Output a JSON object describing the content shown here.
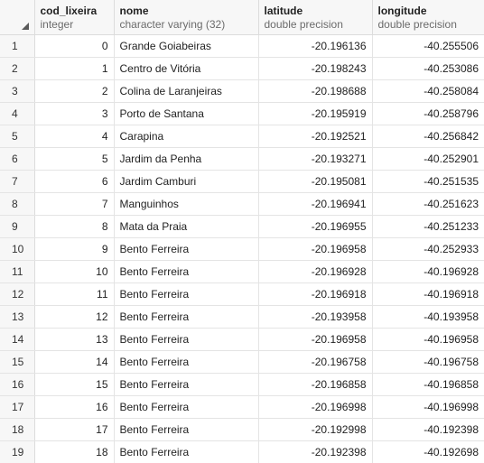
{
  "columns": [
    {
      "name": "cod_lixeira",
      "type": "integer"
    },
    {
      "name": "nome",
      "type": "character varying (32)"
    },
    {
      "name": "latitude",
      "type": "double precision"
    },
    {
      "name": "longitude",
      "type": "double precision"
    }
  ],
  "rows": [
    {
      "num": "1",
      "cod": "0",
      "nome": "Grande Goiabeiras",
      "lat": "-20.196136",
      "lon": "-40.255506"
    },
    {
      "num": "2",
      "cod": "1",
      "nome": "Centro de Vitória",
      "lat": "-20.198243",
      "lon": "-40.253086"
    },
    {
      "num": "3",
      "cod": "2",
      "nome": "Colina de Laranjeiras",
      "lat": "-20.198688",
      "lon": "-40.258084"
    },
    {
      "num": "4",
      "cod": "3",
      "nome": "Porto de Santana",
      "lat": "-20.195919",
      "lon": "-40.258796"
    },
    {
      "num": "5",
      "cod": "4",
      "nome": "Carapina",
      "lat": "-20.192521",
      "lon": "-40.256842"
    },
    {
      "num": "6",
      "cod": "5",
      "nome": "Jardim da Penha",
      "lat": "-20.193271",
      "lon": "-40.252901"
    },
    {
      "num": "7",
      "cod": "6",
      "nome": "Jardim Camburi",
      "lat": "-20.195081",
      "lon": "-40.251535"
    },
    {
      "num": "8",
      "cod": "7",
      "nome": "Manguinhos",
      "lat": "-20.196941",
      "lon": "-40.251623"
    },
    {
      "num": "9",
      "cod": "8",
      "nome": "Mata da Praia",
      "lat": "-20.196955",
      "lon": "-40.251233"
    },
    {
      "num": "10",
      "cod": "9",
      "nome": "Bento Ferreira",
      "lat": "-20.196958",
      "lon": "-40.252933"
    },
    {
      "num": "11",
      "cod": "10",
      "nome": "Bento Ferreira",
      "lat": "-20.196928",
      "lon": "-40.196928"
    },
    {
      "num": "12",
      "cod": "11",
      "nome": "Bento Ferreira",
      "lat": "-20.196918",
      "lon": "-40.196918"
    },
    {
      "num": "13",
      "cod": "12",
      "nome": "Bento Ferreira",
      "lat": "-20.193958",
      "lon": "-40.193958"
    },
    {
      "num": "14",
      "cod": "13",
      "nome": "Bento Ferreira",
      "lat": "-20.196958",
      "lon": "-40.196958"
    },
    {
      "num": "15",
      "cod": "14",
      "nome": "Bento Ferreira",
      "lat": "-20.196758",
      "lon": "-40.196758"
    },
    {
      "num": "16",
      "cod": "15",
      "nome": "Bento Ferreira",
      "lat": "-20.196858",
      "lon": "-40.196858"
    },
    {
      "num": "17",
      "cod": "16",
      "nome": "Bento Ferreira",
      "lat": "-20.196998",
      "lon": "-40.196998"
    },
    {
      "num": "18",
      "cod": "17",
      "nome": "Bento Ferreira",
      "lat": "-20.192998",
      "lon": "-40.192398"
    },
    {
      "num": "19",
      "cod": "18",
      "nome": "Bento Ferreira",
      "lat": "-20.192398",
      "lon": "-40.192698"
    }
  ]
}
